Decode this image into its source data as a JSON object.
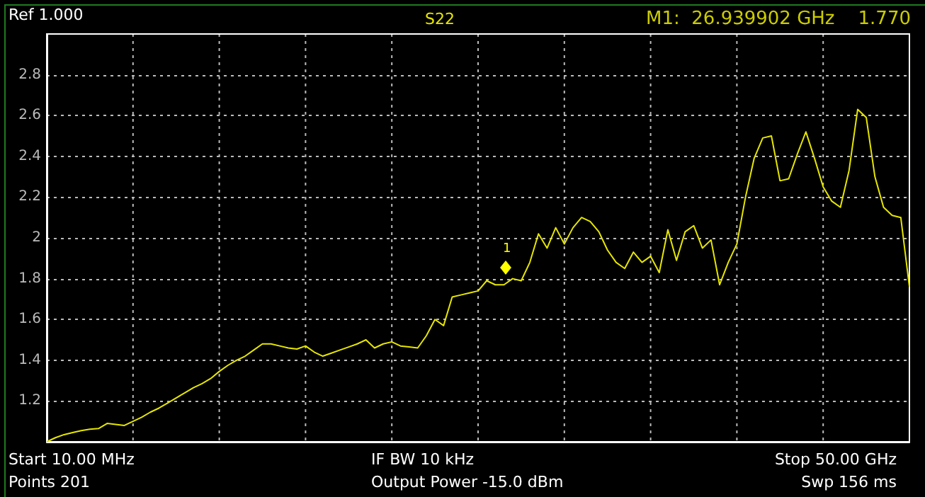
{
  "chart_data": {
    "type": "line",
    "title": "S22",
    "categories": [
      null,
      null,
      null,
      null,
      null,
      null,
      null,
      null,
      null,
      null,
      null,
      null,
      null,
      null,
      null,
      null,
      null,
      null,
      null,
      null,
      null,
      null,
      null,
      null,
      null,
      null,
      null,
      null,
      null,
      null,
      null,
      null,
      null,
      null,
      null,
      null,
      null,
      null,
      null,
      null,
      null,
      null,
      null,
      null,
      null,
      null,
      null,
      null,
      null,
      null,
      null,
      null,
      null,
      null,
      null,
      null,
      null,
      null,
      null,
      null,
      null,
      null,
      null,
      null,
      null,
      null,
      null,
      null,
      null,
      null,
      null,
      null,
      null,
      null,
      null,
      null,
      null,
      null,
      null,
      null,
      null,
      null,
      null,
      null,
      null,
      null,
      null,
      null,
      null,
      null,
      null,
      null,
      null,
      null,
      null,
      null,
      null,
      null,
      null,
      null,
      null
    ],
    "series": [
      {
        "color": "#e6e600",
        "values": [
          1.0,
          1.02,
          1.035,
          1.045,
          1.055,
          1.062,
          1.065,
          1.09,
          1.085,
          1.08,
          1.1,
          1.12,
          1.145,
          1.165,
          1.19,
          1.215,
          1.24,
          1.265,
          1.285,
          1.31,
          1.345,
          1.375,
          1.4,
          1.42,
          1.45,
          1.48,
          1.48,
          1.47,
          1.46,
          1.455,
          1.47,
          1.44,
          1.42,
          1.435,
          1.45,
          1.465,
          1.48,
          1.5,
          1.46,
          1.48,
          1.49,
          1.47,
          1.465,
          1.46,
          1.52,
          1.6,
          1.57,
          1.71,
          1.72,
          1.73,
          1.74,
          1.79,
          1.77,
          1.77,
          1.8,
          1.79,
          1.88,
          2.02,
          1.95,
          2.05,
          1.97,
          2.05,
          2.1,
          2.08,
          2.03,
          1.94,
          1.88,
          1.85,
          1.93,
          1.88,
          1.91,
          1.83,
          2.04,
          1.89,
          2.03,
          2.06,
          1.95,
          1.99,
          1.77,
          1.88,
          1.97,
          2.2,
          2.39,
          2.49,
          2.5,
          2.28,
          2.29,
          2.41,
          2.52,
          2.39,
          2.25,
          2.18,
          2.15,
          2.33,
          2.63,
          2.59,
          2.3,
          2.15,
          2.11,
          2.1,
          1.76
        ]
      }
    ],
    "ylim": [
      1,
      3
    ],
    "yticks": [
      1.2,
      1.4,
      1.6,
      1.8,
      2,
      2.2,
      2.4,
      2.6,
      2.8
    ],
    "tick_labels": "y",
    "grid": true,
    "marker": "none",
    "line_style": "solid",
    "annotations": [
      "Ref 1.000",
      "M1:  26.939902 GHz    1.770",
      "1",
      "Start 10.00 MHz",
      "IF BW 10 kHz",
      "Stop 50.00 GHz",
      "Points 201",
      "Output Power -15.0 dBm",
      "Swp 156 ms"
    ]
  }
}
